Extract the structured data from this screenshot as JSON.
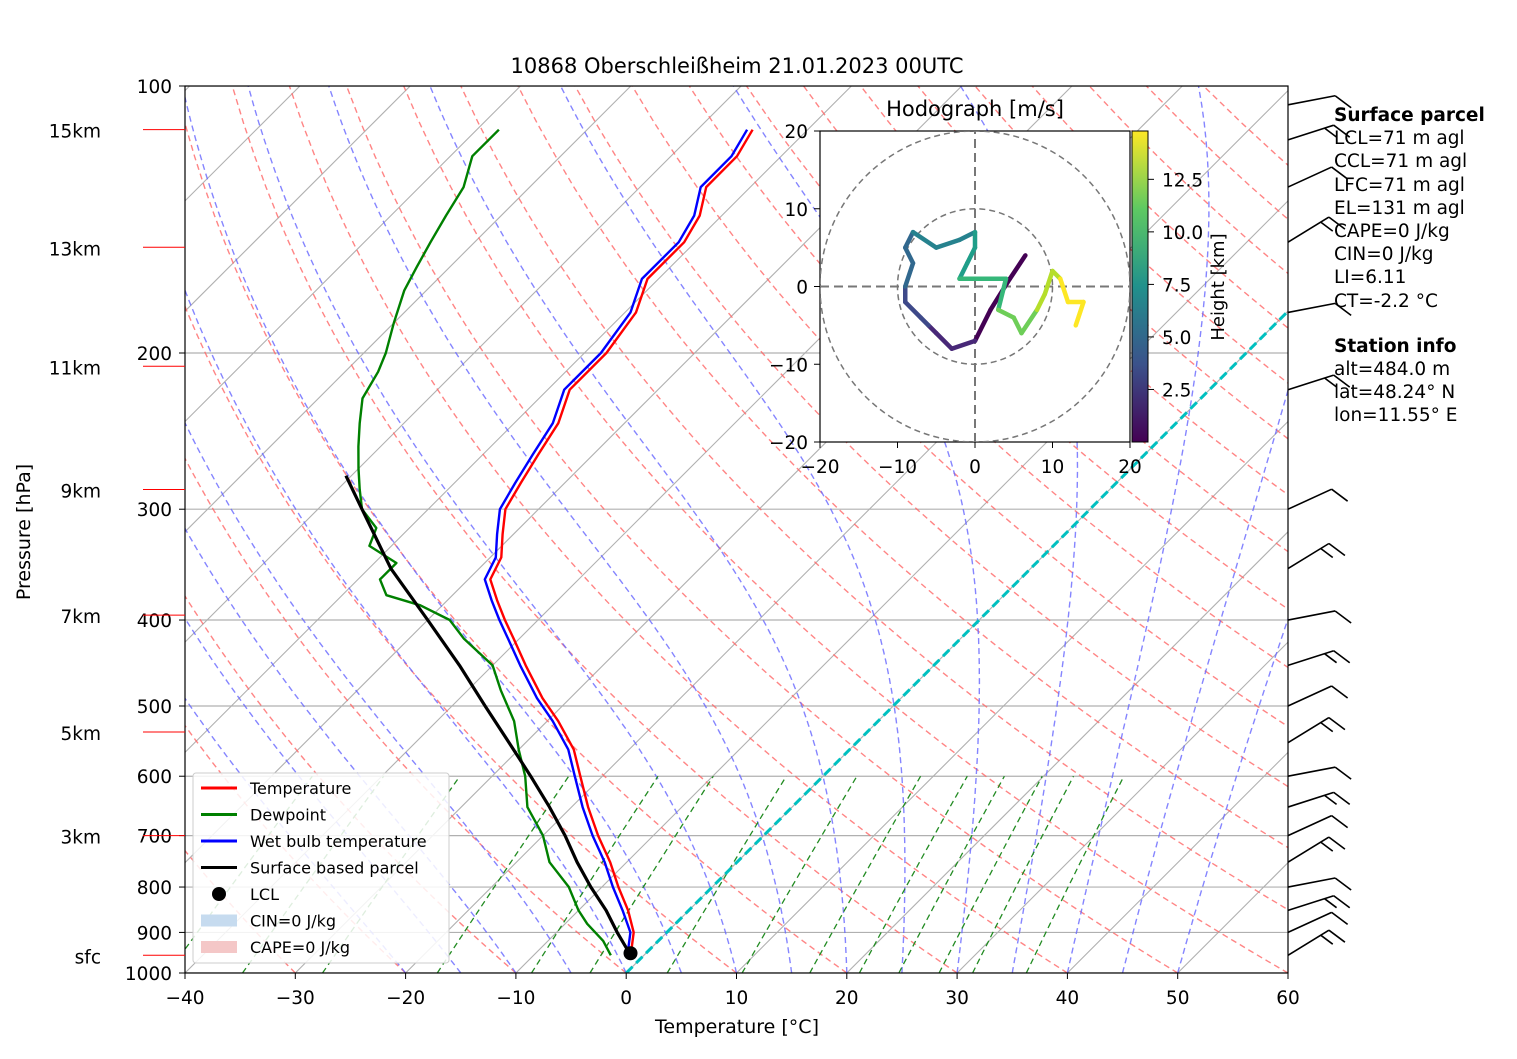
{
  "title": "10868 Oberschleißheim 21.01.2023 00UTC",
  "chart_data": {
    "type": "skew-t log-p sounding",
    "title": "10868 Oberschleißheim 21.01.2023 00UTC",
    "xlabel": "Temperature [°C]",
    "ylabel": "Pressure [hPa]",
    "xlim": [
      -40,
      60
    ],
    "ylim_hpa": [
      1000,
      100
    ],
    "log_pressure_axis": true,
    "x_ticks": [
      "−40",
      "−30",
      "−20",
      "−10",
      "0",
      "10",
      "20",
      "30",
      "40",
      "50",
      "60"
    ],
    "p_ticks": [
      "100",
      "200",
      "300",
      "400",
      "500",
      "600",
      "700",
      "800",
      "900",
      "1000"
    ],
    "height_markers": [
      {
        "label": "sfc",
        "p": 955
      },
      {
        "label": "3km",
        "p": 700
      },
      {
        "label": "5km",
        "p": 535
      },
      {
        "label": "7km",
        "p": 395
      },
      {
        "label": "9km",
        "p": 285
      },
      {
        "label": "11km",
        "p": 207
      },
      {
        "label": "13km",
        "p": 152
      },
      {
        "label": "15km",
        "p": 112
      }
    ],
    "legend": {
      "placement": "lower-left",
      "entries": [
        "Temperature",
        "Dewpoint",
        "Wet bulb temperature",
        "Surface based parcel",
        "LCL",
        "CIN=0 J/kg",
        "CAPE=0 J/kg"
      ]
    },
    "series": [
      {
        "name": "Temperature",
        "color": "#ff0000",
        "points": [
          [
            955,
            -1.2
          ],
          [
            900,
            -3
          ],
          [
            850,
            -5.5
          ],
          [
            800,
            -8.5
          ],
          [
            750,
            -11.5
          ],
          [
            700,
            -15
          ],
          [
            650,
            -18.5
          ],
          [
            600,
            -22
          ],
          [
            560,
            -25
          ],
          [
            520,
            -29
          ],
          [
            490,
            -32.5
          ],
          [
            450,
            -37
          ],
          [
            420,
            -40.5
          ],
          [
            400,
            -43
          ],
          [
            380,
            -45.5
          ],
          [
            360,
            -48
          ],
          [
            340,
            -49
          ],
          [
            320,
            -51
          ],
          [
            300,
            -53
          ],
          [
            280,
            -54
          ],
          [
            260,
            -55
          ],
          [
            240,
            -56
          ],
          [
            220,
            -58
          ],
          [
            200,
            -58
          ],
          [
            180,
            -59
          ],
          [
            165,
            -61
          ],
          [
            150,
            -61
          ],
          [
            140,
            -62
          ],
          [
            130,
            -64
          ],
          [
            120,
            -64
          ],
          [
            112,
            -65
          ]
        ]
      },
      {
        "name": "Wet bulb temperature",
        "color": "#0000ff",
        "points": [
          [
            955,
            -1.5
          ],
          [
            900,
            -3.3
          ],
          [
            850,
            -6
          ],
          [
            800,
            -9
          ],
          [
            750,
            -12
          ],
          [
            700,
            -15.5
          ],
          [
            650,
            -19
          ],
          [
            600,
            -22.5
          ],
          [
            560,
            -25.5
          ],
          [
            520,
            -29.5
          ],
          [
            490,
            -33
          ],
          [
            450,
            -37.5
          ],
          [
            420,
            -41
          ],
          [
            400,
            -43.5
          ],
          [
            380,
            -46
          ],
          [
            360,
            -48.5
          ],
          [
            340,
            -49.5
          ],
          [
            320,
            -51.5
          ],
          [
            300,
            -53.5
          ],
          [
            280,
            -54.5
          ],
          [
            260,
            -55.5
          ],
          [
            240,
            -56.5
          ],
          [
            220,
            -58.5
          ],
          [
            200,
            -58.5
          ],
          [
            180,
            -59.5
          ],
          [
            165,
            -61.5
          ],
          [
            150,
            -61.5
          ],
          [
            140,
            -62.5
          ],
          [
            130,
            -64.5
          ],
          [
            120,
            -64.5
          ],
          [
            112,
            -65.5
          ]
        ]
      },
      {
        "name": "Dewpoint",
        "color": "#008000",
        "points": [
          [
            955,
            -3
          ],
          [
            920,
            -5
          ],
          [
            880,
            -8
          ],
          [
            850,
            -10
          ],
          [
            800,
            -13
          ],
          [
            750,
            -17
          ],
          [
            700,
            -20
          ],
          [
            650,
            -24
          ],
          [
            600,
            -27
          ],
          [
            560,
            -30
          ],
          [
            520,
            -33
          ],
          [
            480,
            -37
          ],
          [
            450,
            -40
          ],
          [
            420,
            -45
          ],
          [
            400,
            -48
          ],
          [
            385,
            -52
          ],
          [
            375,
            -56
          ],
          [
            360,
            -58
          ],
          [
            345,
            -58
          ],
          [
            330,
            -62
          ],
          [
            315,
            -63
          ],
          [
            300,
            -66
          ],
          [
            285,
            -68
          ],
          [
            270,
            -70
          ],
          [
            255,
            -72
          ],
          [
            240,
            -74
          ],
          [
            225,
            -76
          ],
          [
            210,
            -77
          ],
          [
            200,
            -78
          ],
          [
            185,
            -80
          ],
          [
            170,
            -82
          ],
          [
            160,
            -83
          ],
          [
            150,
            -84
          ],
          [
            140,
            -85
          ],
          [
            130,
            -86
          ],
          [
            120,
            -88
          ],
          [
            112,
            -88
          ]
        ]
      },
      {
        "name": "Surface based parcel",
        "color": "#000000",
        "points": [
          [
            955,
            -1.2
          ],
          [
            900,
            -4.5
          ],
          [
            850,
            -7.5
          ],
          [
            800,
            -11
          ],
          [
            750,
            -14.5
          ],
          [
            700,
            -18
          ],
          [
            650,
            -22
          ],
          [
            600,
            -26.5
          ],
          [
            550,
            -31.5
          ],
          [
            500,
            -37
          ],
          [
            450,
            -43
          ],
          [
            400,
            -50
          ],
          [
            350,
            -58
          ],
          [
            300,
            -66
          ],
          [
            275,
            -70.5
          ]
        ]
      }
    ],
    "lcl": {
      "label": "LCL",
      "p": 950,
      "t": -1.4
    },
    "freezing_level_line": {
      "style": "cyan dashed",
      "t": 0
    },
    "hodograph": {
      "title": "Hodograph [m/s]",
      "xlim": [
        -20,
        20
      ],
      "ylim": [
        -20,
        20
      ],
      "ticks": [
        "−20",
        "−10",
        "0",
        "10",
        "20"
      ],
      "colorbar_label": "Height [km]",
      "colorbar_ticks": [
        "2.5",
        "5.0",
        "7.5",
        "10.0",
        "12.5"
      ],
      "range_rings_ms": [
        10,
        20
      ],
      "points": [
        [
          6.5,
          4
        ],
        [
          4.5,
          1
        ],
        [
          2,
          -3
        ],
        [
          0,
          -7
        ],
        [
          -3,
          -8
        ],
        [
          -5,
          -6
        ],
        [
          -6,
          -5
        ],
        [
          -7,
          -4
        ],
        [
          -9,
          -2
        ],
        [
          -9,
          0
        ],
        [
          -8,
          3
        ],
        [
          -9,
          5
        ],
        [
          -8,
          7
        ],
        [
          -5,
          5
        ],
        [
          -2,
          6
        ],
        [
          0,
          7
        ],
        [
          0,
          5
        ],
        [
          -1,
          3
        ],
        [
          -2,
          1
        ],
        [
          1,
          1
        ],
        [
          4,
          1
        ],
        [
          3,
          -3
        ],
        [
          5,
          -4
        ],
        [
          6,
          -6
        ],
        [
          8,
          -3
        ],
        [
          9,
          -1
        ],
        [
          10,
          2
        ],
        [
          11,
          1
        ],
        [
          12,
          -2
        ],
        [
          14,
          -2
        ],
        [
          13,
          -5
        ]
      ]
    },
    "wind_barbs": {
      "position": "right edge",
      "levels_hpa": [
        955,
        900,
        850,
        800,
        750,
        700,
        650,
        600,
        550,
        500,
        450,
        400,
        350,
        300,
        220,
        180,
        150,
        130,
        115,
        105
      ]
    }
  },
  "surface_parcel": {
    "heading": "Surface parcel",
    "lines": [
      "LCL=71 m agl",
      "CCL=71 m agl",
      "LFC=71 m agl",
      "EL=131 m agl",
      "CAPE=0 J/kg",
      "CIN=0 J/kg",
      "LI=6.11",
      "CT=-2.2 °C"
    ]
  },
  "station_info": {
    "heading": "Station info",
    "lines": [
      "alt=484.0 m",
      "lat=48.24° N",
      "lon=11.55° E"
    ]
  },
  "colors": {
    "temperature": "#ff0000",
    "dewpoint": "#008000",
    "wetbulb": "#0000ff",
    "parcel": "#000000",
    "dry_adiabat": "#ff6666",
    "moist_adiabat": "#6666ff",
    "mixing_ratio": "#228b22",
    "isotherm": "#aaaaaa",
    "freezing": "#00c0c0"
  }
}
